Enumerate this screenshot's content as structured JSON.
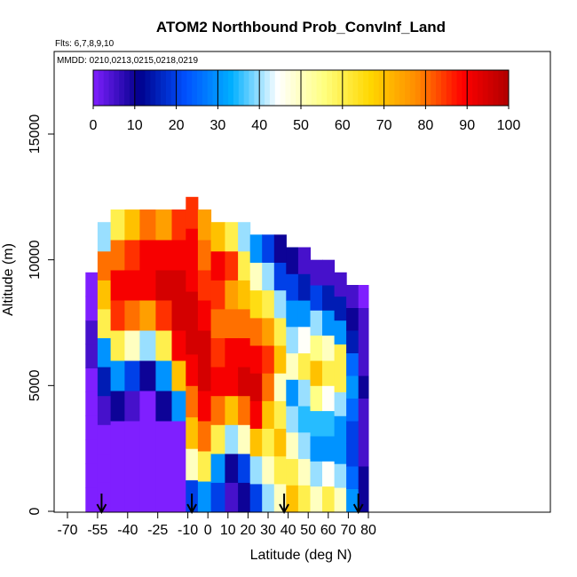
{
  "chart_data": {
    "type": "heatmap",
    "title": "ATOM2 Northbound Prob_ConvInf_Land",
    "flights_note": "Flts: 6,7,8,9,10",
    "dates_note": "MMDD: 0210,0213,0215,0218,0219",
    "xlabel": "Latitude (deg N)",
    "ylabel": "Altitude (m)",
    "xlim": [
      -70,
      85
    ],
    "ylim": [
      0,
      17500
    ],
    "x_ticks": [
      -70,
      -55,
      -40,
      -25,
      -10,
      0,
      10,
      20,
      30,
      40,
      50,
      60,
      70,
      80
    ],
    "y_ticks": [
      0,
      5000,
      10000,
      15000
    ],
    "colorbar": {
      "min": 0,
      "max": 100,
      "ticks": [
        0,
        10,
        20,
        30,
        40,
        50,
        60,
        70,
        80,
        90,
        100
      ],
      "colors": [
        "#7f1fff",
        "#00008b",
        "#0050ff",
        "#00b0ff",
        "#ffffff",
        "#ffff80",
        "#ffd700",
        "#ff8c00",
        "#ff0000",
        "#b00000"
      ]
    },
    "markers_lat": [
      -53,
      -8,
      38,
      75
    ],
    "profiles": [
      {
        "lat": -58,
        "top": 9500,
        "values": [
          0,
          0,
          0,
          0,
          0,
          0,
          5,
          5,
          0,
          0
        ]
      },
      {
        "lat": -52,
        "top": 11500,
        "values": [
          0,
          0,
          0,
          5,
          15,
          30,
          60,
          70,
          80,
          40
        ]
      },
      {
        "lat": -45,
        "top": 12000,
        "values": [
          0,
          0,
          0,
          10,
          30,
          60,
          85,
          90,
          80,
          60
        ]
      },
      {
        "lat": -38,
        "top": 12000,
        "values": [
          0,
          0,
          0,
          5,
          20,
          50,
          80,
          90,
          85,
          70
        ]
      },
      {
        "lat": -30,
        "top": 12000,
        "values": [
          0,
          0,
          0,
          0,
          10,
          40,
          75,
          90,
          90,
          80
        ]
      },
      {
        "lat": -22,
        "top": 12000,
        "values": [
          0,
          0,
          0,
          10,
          30,
          60,
          85,
          95,
          90,
          75
        ]
      },
      {
        "lat": -14,
        "top": 12000,
        "values": [
          0,
          0,
          0,
          30,
          70,
          90,
          95,
          95,
          90,
          85
        ]
      },
      {
        "lat": -8,
        "top": 12500,
        "values": [
          20,
          50,
          70,
          80,
          90,
          95,
          95,
          90,
          90,
          85
        ]
      },
      {
        "lat": -2,
        "top": 12000,
        "values": [
          30,
          60,
          80,
          90,
          95,
          95,
          90,
          85,
          80,
          75
        ]
      },
      {
        "lat": 5,
        "top": 11500,
        "values": [
          20,
          30,
          60,
          80,
          90,
          85,
          80,
          85,
          90,
          70
        ]
      },
      {
        "lat": 12,
        "top": 11500,
        "values": [
          5,
          10,
          40,
          70,
          90,
          90,
          80,
          75,
          85,
          60
        ]
      },
      {
        "lat": 18,
        "top": 11500,
        "values": [
          10,
          20,
          50,
          80,
          95,
          90,
          80,
          70,
          60,
          40
        ]
      },
      {
        "lat": 24,
        "top": 11000,
        "values": [
          20,
          40,
          70,
          90,
          95,
          90,
          80,
          65,
          50,
          30
        ]
      },
      {
        "lat": 30,
        "top": 11000,
        "values": [
          40,
          50,
          60,
          70,
          80,
          85,
          75,
          60,
          40,
          20
        ]
      },
      {
        "lat": 36,
        "top": 11000,
        "values": [
          50,
          60,
          70,
          60,
          50,
          70,
          60,
          40,
          20,
          10
        ]
      },
      {
        "lat": 42,
        "top": 10500,
        "values": [
          70,
          60,
          50,
          40,
          30,
          50,
          40,
          30,
          20,
          10
        ]
      },
      {
        "lat": 48,
        "top": 10500,
        "values": [
          60,
          50,
          40,
          35,
          40,
          60,
          45,
          30,
          15,
          5
        ]
      },
      {
        "lat": 54,
        "top": 10000,
        "values": [
          50,
          40,
          30,
          35,
          55,
          70,
          55,
          40,
          20,
          5
        ]
      },
      {
        "lat": 60,
        "top": 10000,
        "values": [
          60,
          45,
          30,
          35,
          45,
          60,
          50,
          30,
          15,
          5
        ]
      },
      {
        "lat": 66,
        "top": 9500,
        "values": [
          50,
          40,
          30,
          30,
          40,
          60,
          60,
          30,
          15,
          5
        ]
      },
      {
        "lat": 72,
        "top": 9000,
        "values": [
          30,
          25,
          20,
          20,
          25,
          30,
          25,
          15,
          10,
          5
        ]
      },
      {
        "lat": 78,
        "top": 9000,
        "values": [
          10,
          10,
          5,
          5,
          5,
          10,
          5,
          5,
          5,
          0
        ]
      }
    ]
  }
}
